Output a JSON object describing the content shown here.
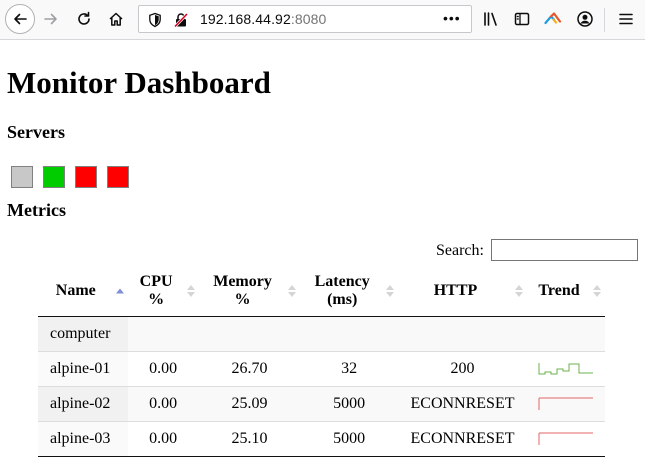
{
  "browser": {
    "url_host": "192.168.44.92",
    "url_port": ":8080",
    "more_label": "•••"
  },
  "page": {
    "title": "Monitor Dashboard",
    "servers_heading": "Servers",
    "metrics_heading": "Metrics",
    "search_label": "Search:",
    "search_value": ""
  },
  "servers": [
    {
      "status_color": "#c8c8c8"
    },
    {
      "status_color": "#00cc00"
    },
    {
      "status_color": "#ff0000"
    },
    {
      "status_color": "#ff0000"
    }
  ],
  "table": {
    "headers": [
      "Name",
      "CPU %",
      "Memory %",
      "Latency (ms)",
      "HTTP",
      "Trend"
    ],
    "headers_lines": [
      [
        "Name"
      ],
      [
        "CPU",
        "%"
      ],
      [
        "Memory",
        "%"
      ],
      [
        "Latency",
        "(ms)"
      ],
      [
        "HTTP"
      ],
      [
        "Trend"
      ]
    ],
    "rows": [
      {
        "name": "computer",
        "cpu": "",
        "memory": "",
        "latency": "",
        "http": "",
        "trend": null
      },
      {
        "name": "alpine-01",
        "cpu": "0.00",
        "memory": "26.70",
        "latency": "32",
        "http": "200",
        "trend": {
          "color": "#6ab04c",
          "shape": "step-up"
        }
      },
      {
        "name": "alpine-02",
        "cpu": "0.00",
        "memory": "25.09",
        "latency": "5000",
        "http": "ECONNRESET",
        "trend": {
          "color": "#e06666",
          "shape": "flat-high"
        }
      },
      {
        "name": "alpine-03",
        "cpu": "0.00",
        "memory": "25.10",
        "latency": "5000",
        "http": "ECONNRESET",
        "trend": {
          "color": "#e06666",
          "shape": "flat-high"
        }
      }
    ]
  },
  "colors": {
    "sort_active": "#7e8fd6",
    "trend_ok": "#6ab04c",
    "trend_err": "#e06666"
  },
  "icons": [
    "back-arrow-icon",
    "forward-arrow-icon",
    "reload-icon",
    "home-icon",
    "shield-icon",
    "insecure-lock-icon",
    "library-icon",
    "sidebar-icon",
    "extension-icon",
    "account-icon",
    "hamburger-menu-icon"
  ]
}
